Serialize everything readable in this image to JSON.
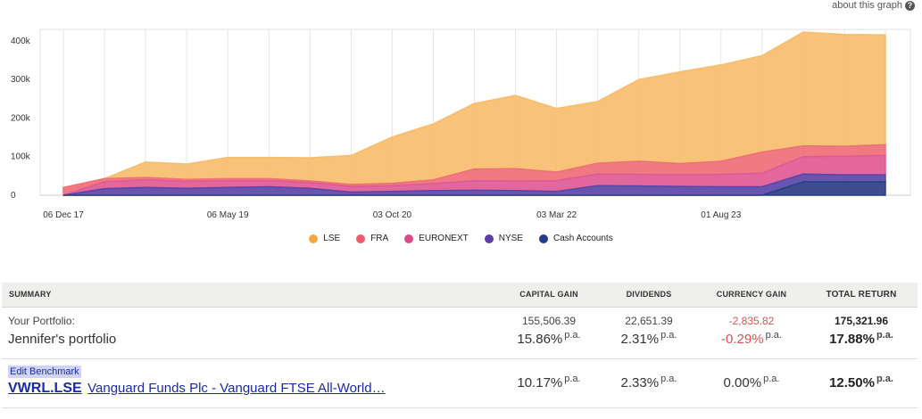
{
  "about_link": "about this graph",
  "chart_data": {
    "type": "area",
    "stacked": true,
    "x_labels": [
      "06 Dec 17",
      "06 May 19",
      "03 Oct 20",
      "03 Mar 22",
      "01 Aug 23"
    ],
    "x_label_index": [
      0,
      4,
      8,
      12,
      16
    ],
    "y_ticks": [
      "0",
      "100k",
      "200k",
      "300k",
      "400k"
    ],
    "ylim": [
      0,
      430000
    ],
    "grid": "vertical",
    "legend_position": "bottom",
    "series": [
      {
        "name": "Cash Accounts",
        "color": "#2b3f86",
        "values": [
          0,
          0,
          0,
          0,
          0,
          0,
          0,
          0,
          0,
          0,
          0,
          0,
          0,
          0,
          0,
          0,
          0,
          0,
          35000,
          35000,
          35000
        ]
      },
      {
        "name": "NYSE",
        "color": "#5a46a8",
        "values": [
          0,
          17000,
          20000,
          18000,
          20000,
          22000,
          18000,
          8000,
          10000,
          12000,
          13000,
          12000,
          10000,
          25000,
          24000,
          23000,
          22000,
          22000,
          20000,
          18000,
          18000
        ]
      },
      {
        "name": "EURONEXT",
        "color": "#de5a95",
        "values": [
          0,
          18000,
          20000,
          18000,
          18000,
          16000,
          15000,
          15000,
          15000,
          18000,
          25000,
          25000,
          28000,
          30000,
          30000,
          30000,
          32000,
          35000,
          45000,
          48000,
          50000
        ]
      },
      {
        "name": "FRA",
        "color": "#ef6f78",
        "values": [
          20000,
          8000,
          6000,
          5000,
          5000,
          5000,
          4000,
          5000,
          6000,
          10000,
          30000,
          32000,
          22000,
          28000,
          34000,
          29000,
          34000,
          55000,
          28000,
          26000,
          28000
        ]
      },
      {
        "name": "LSE",
        "color": "#f7bd6d",
        "values": [
          0,
          0,
          40000,
          40000,
          55000,
          55000,
          60000,
          75000,
          120000,
          145000,
          170000,
          190000,
          165000,
          160000,
          212000,
          238000,
          250000,
          250000,
          295000,
          290000,
          285000
        ]
      }
    ]
  },
  "legend": [
    {
      "label": "LSE",
      "color": "#f5a742"
    },
    {
      "label": "FRA",
      "color": "#ef5a6a"
    },
    {
      "label": "EURONEXT",
      "color": "#d84a8a"
    },
    {
      "label": "NYSE",
      "color": "#5a3fa8"
    },
    {
      "label": "Cash Accounts",
      "color": "#223c8a"
    }
  ],
  "table": {
    "headers": {
      "summary": "SUMMARY",
      "capital_gain": "CAPITAL GAIN",
      "dividends": "DIVIDENDS",
      "currency_gain": "CURRENCY GAIN",
      "total_return": "TOTAL RETURN"
    },
    "pa": "p.a.",
    "portfolio": {
      "label": "Your Portfolio:",
      "name": "Jennifer's portfolio",
      "capital_gain": "155,506.39",
      "capital_gain_pct": "15.86%",
      "dividends": "22,651.39",
      "dividends_pct": "2.31%",
      "currency_gain": "-2,835.82",
      "currency_gain_pct": "-0.29%",
      "total_return": "175,321.96",
      "total_return_pct": "17.88%"
    },
    "benchmark": {
      "edit_label": "Edit Benchmark",
      "ticker": "VWRL.LSE",
      "name": "Vanguard Funds Plc - Vanguard FTSE All-World…",
      "capital_gain_pct": "10.17%",
      "dividends_pct": "2.33%",
      "currency_gain_pct": "0.00%",
      "total_return_pct": "12.50%"
    }
  }
}
